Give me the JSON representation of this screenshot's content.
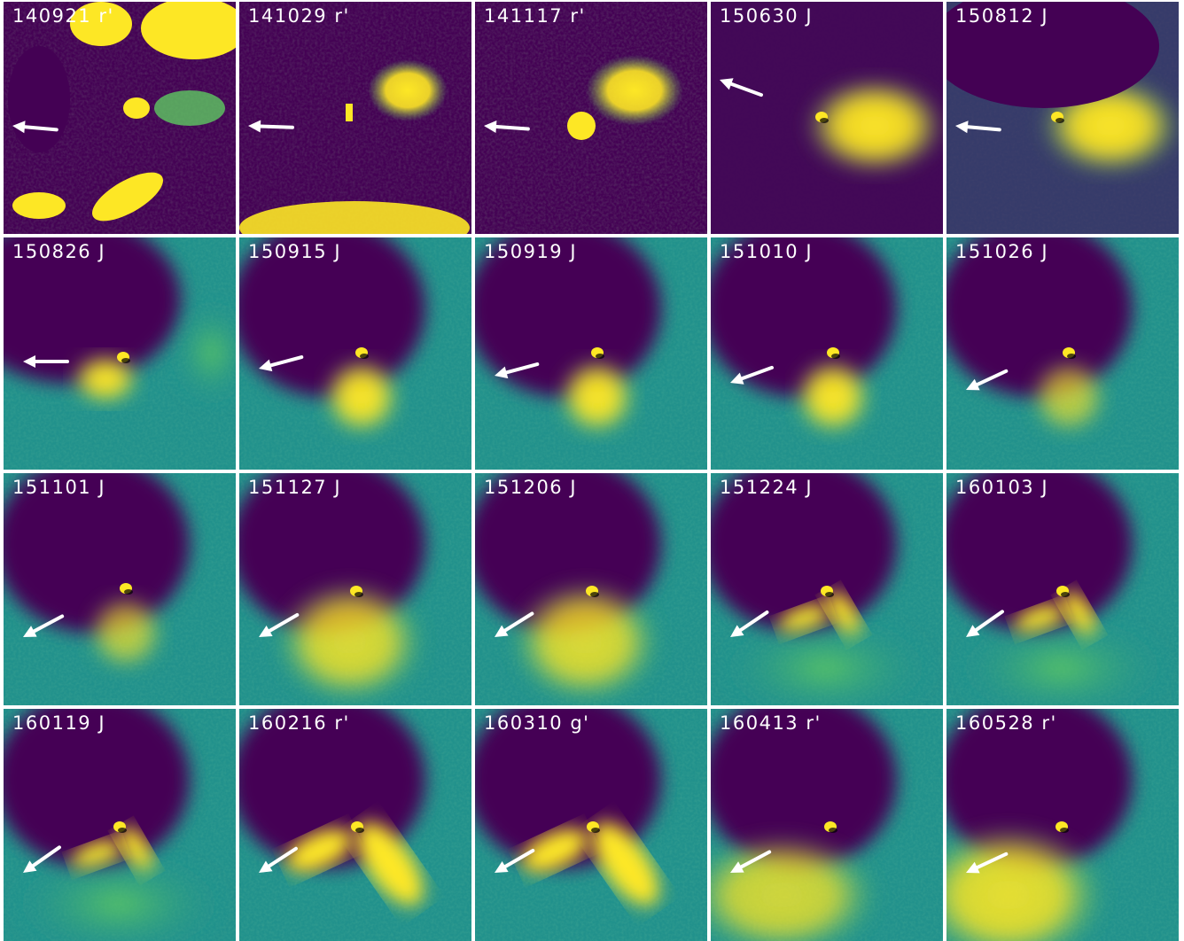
{
  "figure": {
    "colors": {
      "dark": "#440154",
      "mid": "#2a788e",
      "teal": "#21918c",
      "green": "#5ec962",
      "yellow": "#fde725",
      "arrow": "#ffffff",
      "background": "#ffffff"
    },
    "panels": [
      {
        "label": "140921 r'",
        "arrow_angle_deg": 175,
        "style": "noisy-fields"
      },
      {
        "label": "141029 r'",
        "arrow_angle_deg": 178,
        "style": "noisy-fields"
      },
      {
        "label": "141117 r'",
        "arrow_angle_deg": 176,
        "style": "noisy-blob"
      },
      {
        "label": "150630 J",
        "arrow_angle_deg": 160,
        "style": "coma-right"
      },
      {
        "label": "150812 J",
        "arrow_angle_deg": 175,
        "style": "coma-right-dark"
      },
      {
        "label": "150826 J",
        "arrow_angle_deg": 180,
        "style": "coma-wide"
      },
      {
        "label": "150915 J",
        "arrow_angle_deg": 195,
        "style": "coma-down"
      },
      {
        "label": "150919 J",
        "arrow_angle_deg": 195,
        "style": "coma-down"
      },
      {
        "label": "151010 J",
        "arrow_angle_deg": 200,
        "style": "coma-down"
      },
      {
        "label": "151026 J",
        "arrow_angle_deg": 205,
        "style": "coma-down-faint"
      },
      {
        "label": "151101 J",
        "arrow_angle_deg": 208,
        "style": "coma-down-faint"
      },
      {
        "label": "151127 J",
        "arrow_angle_deg": 210,
        "style": "coma-fan"
      },
      {
        "label": "151206 J",
        "arrow_angle_deg": 212,
        "style": "coma-fan"
      },
      {
        "label": "151224 J",
        "arrow_angle_deg": 214,
        "style": "coma-split"
      },
      {
        "label": "160103 J",
        "arrow_angle_deg": 215,
        "style": "coma-split"
      },
      {
        "label": "160119 J",
        "arrow_angle_deg": 215,
        "style": "coma-split-noisy"
      },
      {
        "label": "160216 r'",
        "arrow_angle_deg": 213,
        "style": "coma-split-wide"
      },
      {
        "label": "160310 g'",
        "arrow_angle_deg": 210,
        "style": "coma-split-wide"
      },
      {
        "label": "160413 r'",
        "arrow_angle_deg": 208,
        "style": "coma-bright-left"
      },
      {
        "label": "160528 r'",
        "arrow_angle_deg": 205,
        "style": "coma-noisy-left"
      }
    ]
  }
}
